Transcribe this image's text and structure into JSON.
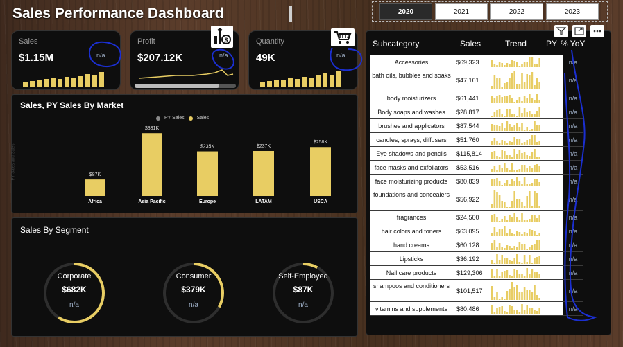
{
  "header": {
    "title": "Sales Performance Dashboard"
  },
  "year_slicer": {
    "years": [
      "2020",
      "2021",
      "2022",
      "2023"
    ],
    "selected": "2020"
  },
  "kpis": [
    {
      "label": "Sales",
      "value": "$1.15M",
      "yoy": "n/a",
      "icon": ""
    },
    {
      "label": "Profit",
      "value": "$207.12K",
      "yoy": "n/a",
      "icon": "profit-chart-icon"
    },
    {
      "label": "Quantity",
      "value": "49K",
      "yoy": "n/a",
      "icon": "shopping-cart-icon"
    }
  ],
  "market_chart": {
    "title": "Sales, PY Sales By Market",
    "legend": [
      "PY Sales",
      "Sales"
    ],
    "ylabel": "PY Sales and Sales",
    "colors": {
      "sales": "#e8cd63",
      "py": "#8a8a8a"
    }
  },
  "chart_data": {
    "type": "bar",
    "categories": [
      "Africa",
      "Asia Pacific",
      "Europe",
      "LATAM",
      "USCA"
    ],
    "series": [
      {
        "name": "Sales",
        "values": [
          87,
          331,
          235,
          237,
          258
        ]
      }
    ],
    "data_labels": [
      "$87K",
      "$331K",
      "$235K",
      "$237K",
      "$258K"
    ],
    "unit": "K",
    "ylim": [
      0,
      350
    ]
  },
  "segments": {
    "title": "Sales By Segment",
    "items": [
      {
        "name": "Corporate",
        "value": "$682K",
        "yoy": "n/a",
        "share": 0.59
      },
      {
        "name": "Consumer",
        "value": "$379K",
        "yoy": "n/a",
        "share": 0.33
      },
      {
        "name": "Self-Employed",
        "value": "$87K",
        "yoy": "n/a",
        "share": 0.08
      }
    ]
  },
  "table": {
    "columns": [
      "Subcategory",
      "Sales",
      "Trend",
      "PY",
      "% YoY"
    ],
    "rows": [
      {
        "subcategory": "Accessories",
        "sales": "$69,323",
        "yoy": "n/a"
      },
      {
        "subcategory": "bath oils, bubbles and soaks",
        "sales": "$47,161",
        "yoy": "n/a"
      },
      {
        "subcategory": "body moisturizers",
        "sales": "$61,441",
        "yoy": "n/a"
      },
      {
        "subcategory": "Body soaps and washes",
        "sales": "$28,817",
        "yoy": "n/a"
      },
      {
        "subcategory": "brushes and applicators",
        "sales": "$87,544",
        "yoy": "n/a"
      },
      {
        "subcategory": "candles, sprays, diffusers",
        "sales": "$51,760",
        "yoy": "n/a"
      },
      {
        "subcategory": "Eye shadows and pencils",
        "sales": "$115,814",
        "yoy": "n/a"
      },
      {
        "subcategory": "face masks and exfoliators",
        "sales": "$53,516",
        "yoy": "n/a"
      },
      {
        "subcategory": "face moisturizing products",
        "sales": "$80,839",
        "yoy": "n/a"
      },
      {
        "subcategory": "foundations and concealers",
        "sales": "$56,922",
        "yoy": "n/a"
      },
      {
        "subcategory": "fragrances",
        "sales": "$24,500",
        "yoy": "n/a"
      },
      {
        "subcategory": "hair colors and toners",
        "sales": "$63,095",
        "yoy": "n/a"
      },
      {
        "subcategory": "hand creams",
        "sales": "$60,128",
        "yoy": "n/a"
      },
      {
        "subcategory": "Lipsticks",
        "sales": "$36,192",
        "yoy": "n/a"
      },
      {
        "subcategory": "Nail care products",
        "sales": "$129,306",
        "yoy": "n/a"
      },
      {
        "subcategory": "shampoos and conditioners",
        "sales": "$101,517",
        "yoy": "n/a"
      },
      {
        "subcategory": "vitamins and supplements",
        "sales": "$80,486",
        "yoy": "n/a"
      }
    ]
  },
  "colors": {
    "accent": "#e8cd63",
    "panel": "#0e0e0e",
    "annotation": "#1b2fd1"
  }
}
